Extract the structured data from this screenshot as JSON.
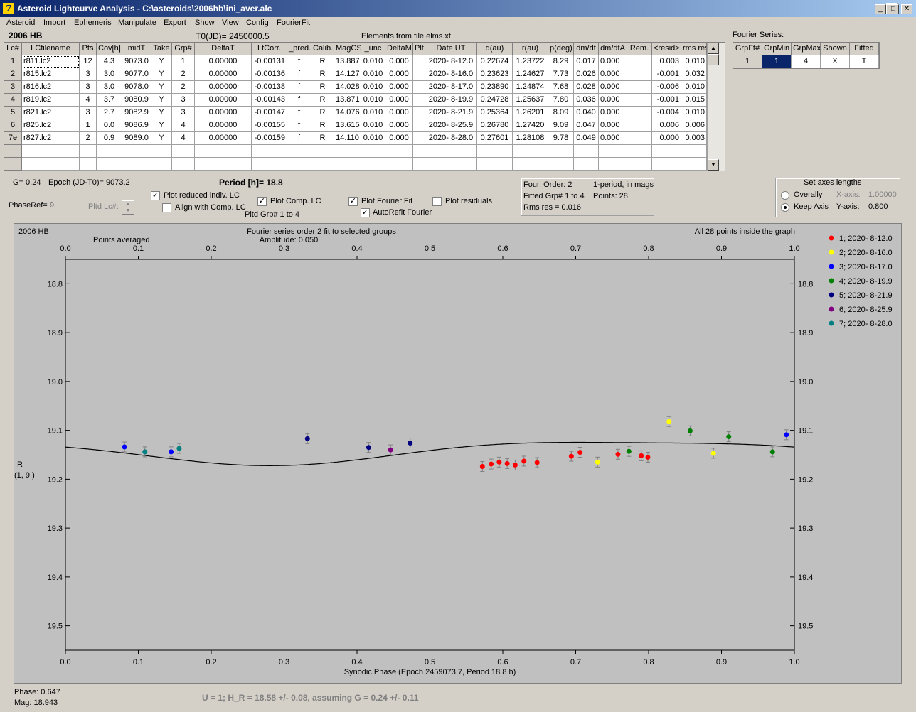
{
  "window": {
    "title": "Asteroid Lightcurve Analysis - C:\\asteroids\\2006hb\\ini_aver.alc",
    "icon_letter": "7"
  },
  "menu": [
    "Asteroid",
    "Import",
    "Ephemeris",
    "Manipulate",
    "Export",
    "Show",
    "View",
    "Config",
    "FourierFit"
  ],
  "header": {
    "asteroid": "2006 HB",
    "t0": "T0(JD)= 2450000.5",
    "elements": "Elements from file elms.xt",
    "fourier_label": "Fourier Series:"
  },
  "lc_table": {
    "columns": [
      "Lc#",
      "LCfilename",
      "Pts",
      "Cov[h]",
      "midT",
      "Take",
      "Grp#",
      "DeltaT",
      "LtCorr.",
      "_pred.",
      "Calib.",
      "MagCS",
      "_unc",
      "DeltaM",
      "Plt",
      "Date UT",
      "d(au)",
      "r(au)",
      "p(deg)",
      "dm/dt",
      "dm/dtA",
      "Rem.",
      "<resid>",
      "rms res"
    ],
    "rows": [
      [
        "1",
        "r811.lc2",
        "12",
        "4.3",
        "9073.0",
        "Y",
        "1",
        "0.00000",
        "-0.00131",
        "f",
        "R",
        "13.887",
        "0.010",
        "0.000",
        "",
        "2020- 8-12.0",
        "0.22674",
        "1.23722",
        "8.29",
        "0.017",
        "0.000",
        "",
        "0.003",
        "0.010"
      ],
      [
        "2",
        "r815.lc2",
        "3",
        "3.0",
        "9077.0",
        "Y",
        "2",
        "0.00000",
        "-0.00136",
        "f",
        "R",
        "14.127",
        "0.010",
        "0.000",
        "",
        "2020- 8-16.0",
        "0.23623",
        "1.24627",
        "7.73",
        "0.026",
        "0.000",
        "",
        "-0.001",
        "0.032"
      ],
      [
        "3",
        "r816.lc2",
        "3",
        "3.0",
        "9078.0",
        "Y",
        "2",
        "0.00000",
        "-0.00138",
        "f",
        "R",
        "14.028",
        "0.010",
        "0.000",
        "",
        "2020- 8-17.0",
        "0.23890",
        "1.24874",
        "7.68",
        "0.028",
        "0.000",
        "",
        "-0.006",
        "0.010"
      ],
      [
        "4",
        "r819.lc2",
        "4",
        "3.7",
        "9080.9",
        "Y",
        "3",
        "0.00000",
        "-0.00143",
        "f",
        "R",
        "13.871",
        "0.010",
        "0.000",
        "",
        "2020- 8-19.9",
        "0.24728",
        "1.25637",
        "7.80",
        "0.036",
        "0.000",
        "",
        "-0.001",
        "0.015"
      ],
      [
        "5",
        "r821.lc2",
        "3",
        "2.7",
        "9082.9",
        "Y",
        "3",
        "0.00000",
        "-0.00147",
        "f",
        "R",
        "14.076",
        "0.010",
        "0.000",
        "",
        "2020- 8-21.9",
        "0.25364",
        "1.26201",
        "8.09",
        "0.040",
        "0.000",
        "",
        "-0.004",
        "0.010"
      ],
      [
        "6",
        "r825.lc2",
        "1",
        "0.0",
        "9086.9",
        "Y",
        "4",
        "0.00000",
        "-0.00155",
        "f",
        "R",
        "13.615",
        "0.010",
        "0.000",
        "",
        "2020- 8-25.9",
        "0.26780",
        "1.27420",
        "9.09",
        "0.047",
        "0.000",
        "",
        "0.006",
        "0.006"
      ],
      [
        "7e",
        "r827.lc2",
        "2",
        "0.9",
        "9089.0",
        "Y",
        "4",
        "0.00000",
        "-0.00159",
        "f",
        "R",
        "14.110",
        "0.010",
        "0.000",
        "",
        "2020- 8-28.0",
        "0.27601",
        "1.28108",
        "9.78",
        "0.049",
        "0.000",
        "",
        "0.000",
        "0.003"
      ]
    ]
  },
  "fourier_table": {
    "columns": [
      "GrpFt#",
      "GrpMin",
      "GrpMax",
      "Shown",
      "Fitted"
    ],
    "row": [
      "1",
      "1",
      "4",
      "X",
      "T"
    ]
  },
  "controls": {
    "g_value": "G= 0.24",
    "epoch": "Epoch (JD-T0)= 9073.2",
    "period": "Period [h]= 18.8",
    "phaseref": "PhaseRef= 9.",
    "pltd_lc": "Pltd Lc#:",
    "plot_reduced": "Plot reduced indiv. LC",
    "align_comp": "Align with Comp. LC",
    "plot_comp": "Plot Comp. LC",
    "pltd_grp": "Pltd Grp#  1   to   4",
    "plot_fourier": "Plot Fourier Fit",
    "autorefit": "AutoRefit Fourier",
    "plot_residuals": "Plot residuals",
    "four_order": "Four. Order:  2",
    "one_period": "1-period, in mags",
    "fitted_grp": "Fitted Grp# 1 to 4",
    "points": "Points: 28",
    "rms_res": "Rms res     = 0.016",
    "axes_title": "Set axes lengths",
    "overally": "Overally",
    "keep_axis": "Keep Axis",
    "x_axis_label": "X-axis:",
    "x_axis_value": "1.00000",
    "y_axis_label": "Y-axis:",
    "y_axis_value": "0.800"
  },
  "chart_data": {
    "type": "scatter",
    "title": "Fourier series order 2 fit to selected groups",
    "subtitle": "Amplitude: 0.050",
    "top_left": "2006 HB",
    "top_left2": "Points averaged",
    "top_right": "All 28 points inside the graph",
    "xlabel": "Synodic Phase (Epoch 2459073.7, Period 18.8 h)",
    "ylabel": "R",
    "ylabel2": "(1, 9.)",
    "xlim": [
      0.0,
      1.0
    ],
    "ylim": [
      18.75,
      19.55
    ],
    "y_inverted": true,
    "xticks": [
      "0.0",
      "0.1",
      "0.2",
      "0.3",
      "0.4",
      "0.5",
      "0.6",
      "0.7",
      "0.8",
      "0.9",
      "1.0"
    ],
    "yticks": [
      "18.8",
      "18.9",
      "19.0",
      "19.1",
      "19.2",
      "19.3",
      "19.4",
      "19.5"
    ],
    "legend_position": "top-right",
    "series": [
      {
        "name": "1; 2020- 8-12.0",
        "color": "#ff0000",
        "points": [
          [
            0.572,
            19.174
          ],
          [
            0.584,
            19.169
          ],
          [
            0.595,
            19.165
          ],
          [
            0.606,
            19.168
          ],
          [
            0.617,
            19.171
          ],
          [
            0.629,
            19.163
          ],
          [
            0.647,
            19.166
          ],
          [
            0.694,
            19.153
          ],
          [
            0.706,
            19.145
          ],
          [
            0.758,
            19.149
          ],
          [
            0.79,
            19.152
          ],
          [
            0.799,
            19.155
          ]
        ]
      },
      {
        "name": "2; 2020- 8-16.0",
        "color": "#ffff00",
        "points": [
          [
            0.73,
            19.165
          ],
          [
            0.828,
            19.082
          ],
          [
            0.889,
            19.147
          ]
        ]
      },
      {
        "name": "3; 2020- 8-17.0",
        "color": "#0000ff",
        "points": [
          [
            0.081,
            19.134
          ],
          [
            0.145,
            19.144
          ],
          [
            0.989,
            19.109
          ]
        ]
      },
      {
        "name": "4; 2020- 8-19.9",
        "color": "#008000",
        "points": [
          [
            0.773,
            19.143
          ],
          [
            0.857,
            19.101
          ],
          [
            0.91,
            19.113
          ],
          [
            0.97,
            19.144
          ]
        ]
      },
      {
        "name": "5; 2020- 8-21.9",
        "color": "#000080",
        "points": [
          [
            0.332,
            19.117
          ],
          [
            0.416,
            19.135
          ],
          [
            0.473,
            19.126
          ]
        ]
      },
      {
        "name": "6; 2020- 8-25.9",
        "color": "#800080",
        "points": [
          [
            0.446,
            19.14
          ]
        ]
      },
      {
        "name": "7; 2020- 8-28.0",
        "color": "#008080",
        "points": [
          [
            0.109,
            19.144
          ],
          [
            0.156,
            19.137
          ]
        ]
      }
    ],
    "fit": {
      "mean": 19.143,
      "terms": [
        [
          -0.0035,
          0.0233
        ],
        [
          -0.0052,
          -0.0026
        ]
      ]
    }
  },
  "status": {
    "phase": "Phase:  0.647",
    "mag": "Mag:    18.943",
    "h_result": "U = 1; H_R = 18.58 +/- 0.08, assuming G = 0.24 +/- 0.11"
  }
}
